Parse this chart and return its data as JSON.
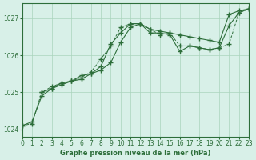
{
  "background_color": "#d8f0e8",
  "grid_color": "#aad4bc",
  "line_color": "#2d6e3a",
  "title": "Graphe pression niveau de la mer (hPa)",
  "xlim": [
    0,
    23
  ],
  "ylim": [
    1023.8,
    1027.4
  ],
  "yticks": [
    1024,
    1025,
    1026,
    1027
  ],
  "xticks": [
    0,
    1,
    2,
    3,
    4,
    5,
    6,
    7,
    8,
    9,
    10,
    11,
    12,
    13,
    14,
    15,
    16,
    17,
    18,
    19,
    20,
    21,
    22,
    23
  ],
  "series1_x": [
    0,
    1,
    2,
    3,
    4,
    5,
    6,
    7,
    8,
    9,
    10,
    11,
    12,
    13,
    14,
    15,
    16,
    17,
    18,
    19,
    20,
    21,
    22,
    23
  ],
  "series1_y": [
    1024.1,
    1024.2,
    1024.9,
    1025.1,
    1025.25,
    1025.3,
    1025.35,
    1025.5,
    1025.7,
    1026.3,
    1026.6,
    1026.85,
    1026.85,
    1026.7,
    1026.65,
    1026.6,
    1026.55,
    1026.5,
    1026.45,
    1026.4,
    1026.35,
    1027.1,
    1027.2,
    1027.25
  ],
  "series2_x": [
    0,
    1,
    2,
    3,
    4,
    5,
    6,
    7,
    8,
    9,
    10,
    11,
    12,
    13,
    14,
    15,
    16,
    17,
    18,
    19,
    20,
    21,
    22,
    23
  ],
  "series2_y": [
    1024.1,
    1024.15,
    1025.0,
    1025.15,
    1025.25,
    1025.3,
    1025.4,
    1025.55,
    1025.9,
    1026.25,
    1026.75,
    1026.85,
    1026.85,
    1026.7,
    1026.55,
    1026.6,
    1026.25,
    1026.25,
    1026.2,
    1026.15,
    1026.2,
    1026.3,
    1027.15,
    1027.25
  ],
  "series3_x": [
    2,
    3,
    4,
    5,
    6,
    7,
    8,
    9,
    10,
    11,
    12,
    13,
    14,
    15,
    16,
    17,
    18,
    19,
    20,
    21,
    22,
    23
  ],
  "series3_y": [
    1025.0,
    1025.1,
    1025.2,
    1025.3,
    1025.45,
    1025.5,
    1025.6,
    1025.8,
    1026.35,
    1026.75,
    1026.85,
    1026.6,
    1026.6,
    1026.55,
    1026.1,
    1026.25,
    1026.2,
    1026.15,
    1026.2,
    1026.8,
    1027.15,
    1027.25
  ]
}
